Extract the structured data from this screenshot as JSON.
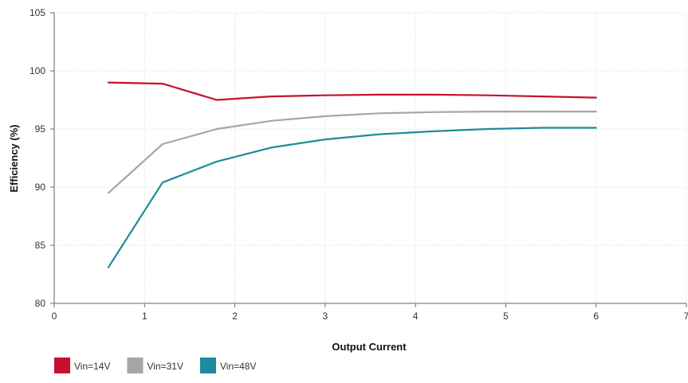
{
  "chart_data": {
    "type": "line",
    "title": "",
    "xlabel": "Output Current",
    "ylabel": "Efficiency (%)",
    "xlim": [
      0,
      7
    ],
    "ylim": [
      80,
      105
    ],
    "xticks": [
      0,
      1,
      2,
      3,
      4,
      5,
      6,
      7
    ],
    "yticks": [
      80,
      85,
      90,
      95,
      100,
      105
    ],
    "grid": true,
    "legend_position": "bottom-left",
    "series": [
      {
        "name": "Vin=14V",
        "color": "#c8102e",
        "x": [
          0.6,
          1.2,
          1.8,
          2.4,
          3.0,
          3.6,
          4.2,
          4.8,
          5.4,
          6.0
        ],
        "y": [
          99.0,
          98.9,
          97.5,
          97.8,
          97.9,
          97.95,
          97.95,
          97.9,
          97.8,
          97.7
        ]
      },
      {
        "name": "Vin=31V",
        "color": "#a6a6a6",
        "x": [
          0.6,
          1.2,
          1.8,
          2.4,
          3.0,
          3.6,
          4.2,
          4.8,
          5.4,
          6.0
        ],
        "y": [
          89.5,
          93.7,
          95.0,
          95.7,
          96.1,
          96.35,
          96.45,
          96.5,
          96.5,
          96.5
        ]
      },
      {
        "name": "Vin=48V",
        "color": "#1d8b9b",
        "x": [
          0.6,
          1.2,
          1.8,
          2.4,
          3.0,
          3.6,
          4.2,
          4.8,
          5.4,
          6.0
        ],
        "y": [
          83.1,
          90.4,
          92.2,
          93.4,
          94.1,
          94.55,
          94.8,
          95.0,
          95.1,
          95.1
        ]
      }
    ]
  }
}
